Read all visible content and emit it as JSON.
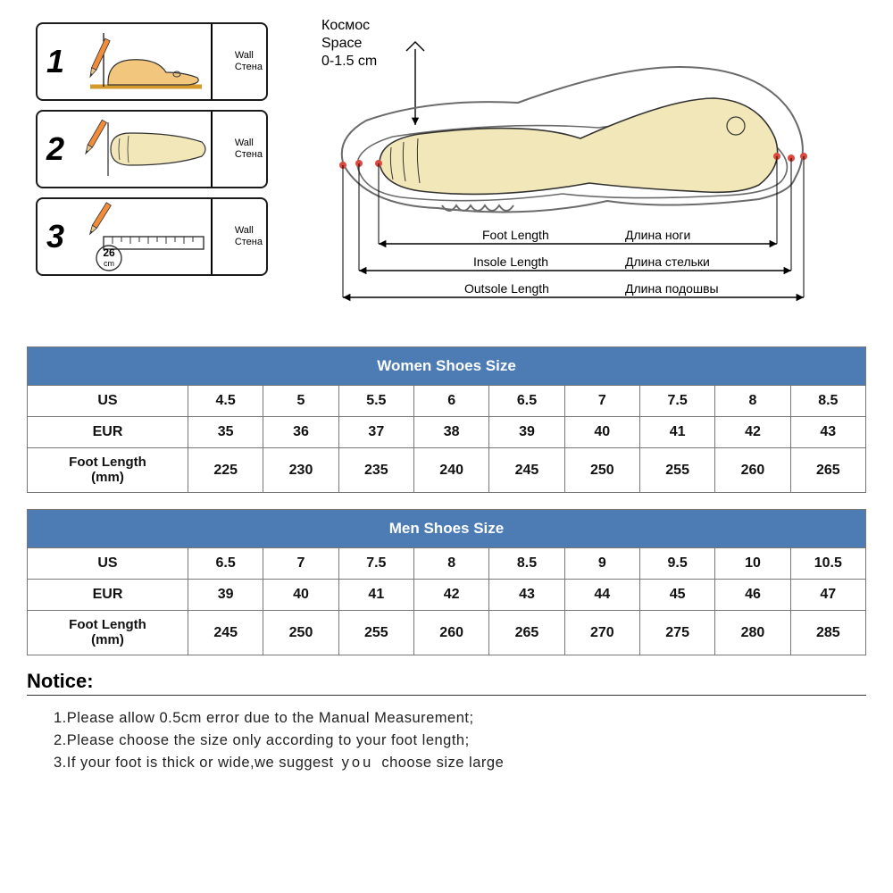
{
  "steps": {
    "wall_en": "Wall",
    "wall_ru": "Стена",
    "numbers": [
      "1",
      "2",
      "3"
    ],
    "ruler_mark": "26",
    "ruler_unit": "cm"
  },
  "shoe": {
    "space_ru": "Космос",
    "space_en": "Space",
    "space_val": "0-1.5 cm",
    "foot_en": "Foot Length",
    "foot_ru": "Длина ноги",
    "insole_en": "Insole Length",
    "insole_ru": "Длина стельки",
    "outsole_en": "Outsole Length",
    "outsole_ru": "Длина подошвы",
    "colors": {
      "foot_fill": "#f2e7b8",
      "foot_stroke": "#333333",
      "shoe_stroke": "#6b6b6b",
      "pencil_body": "#f08c3a",
      "pencil_tip": "#e8c588",
      "dot": "#d94a3f"
    }
  },
  "tables": {
    "header_bg": "#4c7cb3",
    "women": {
      "title": "Women Shoes Size",
      "rows": [
        [
          "US",
          "4.5",
          "5",
          "5.5",
          "6",
          "6.5",
          "7",
          "7.5",
          "8",
          "8.5"
        ],
        [
          "EUR",
          "35",
          "36",
          "37",
          "38",
          "39",
          "40",
          "41",
          "42",
          "43"
        ],
        [
          "Foot Length\n(mm)",
          "225",
          "230",
          "235",
          "240",
          "245",
          "250",
          "255",
          "260",
          "265"
        ]
      ]
    },
    "men": {
      "title": "Men Shoes Size",
      "rows": [
        [
          "US",
          "6.5",
          "7",
          "7.5",
          "8",
          "8.5",
          "9",
          "9.5",
          "10",
          "10.5"
        ],
        [
          "EUR",
          "39",
          "40",
          "41",
          "42",
          "43",
          "44",
          "45",
          "46",
          "47"
        ],
        [
          "Foot Length\n(mm)",
          "245",
          "250",
          "255",
          "260",
          "265",
          "270",
          "275",
          "280",
          "285"
        ]
      ]
    }
  },
  "notice": {
    "title": "Notice:",
    "lines": [
      "1.Please allow 0.5cm error due to the Manual Measurement;",
      "2.Please choose the size only according to your foot length;",
      "3.If your foot is thick or wide,we suggest  you  choose size large"
    ]
  }
}
